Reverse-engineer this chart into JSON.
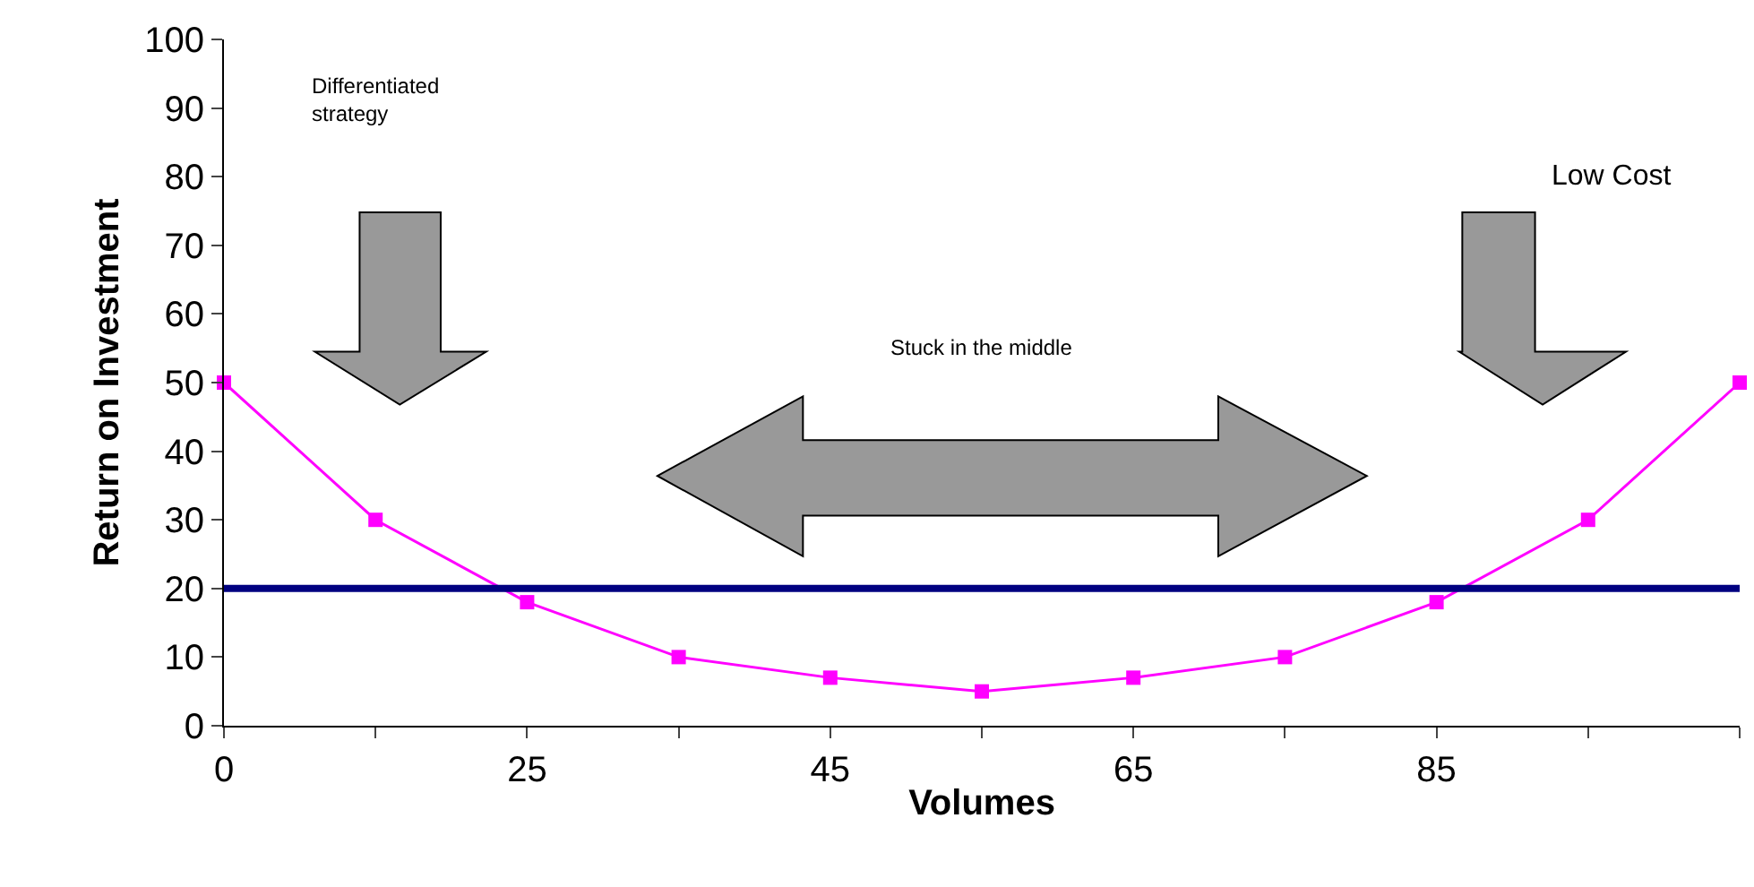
{
  "chart_data": {
    "type": "line",
    "xlabel": "Volumes",
    "ylabel": "Return on Investment",
    "categories": [
      "0",
      null,
      "25",
      null,
      "45",
      null,
      "65",
      null,
      "85",
      null,
      null
    ],
    "series": [
      {
        "color": "#ff00ff",
        "values": [
          50,
          30,
          18,
          10,
          7,
          5,
          7,
          10,
          18,
          30,
          50
        ]
      }
    ],
    "marker": "square",
    "ylim": [
      0,
      100
    ],
    "yticks": [
      0,
      10,
      20,
      30,
      40,
      50,
      60,
      70,
      80,
      90,
      100
    ],
    "grid": false,
    "ref_lines": [
      {
        "axis": "y",
        "value": 20,
        "color": "#000080"
      }
    ],
    "annotations": [
      "Differentiated strategy",
      "Stuck in the middle",
      "Low Cost"
    ]
  }
}
